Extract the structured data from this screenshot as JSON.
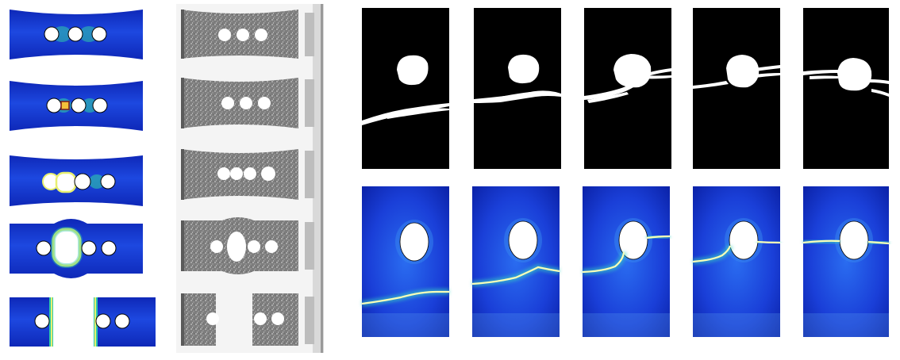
{
  "figure": {
    "panels": {
      "left_column_count": 5,
      "right_grid_rows": 2,
      "right_grid_cols": 5
    },
    "colors": {
      "simulation_base": "#1a3fd8",
      "simulation_dark": "#0a1fb0",
      "crack_highlight": "#f7ffb8",
      "crack_glow": "#39d2c0",
      "photo_gray": "#8a8a8a",
      "binary_black": "#000000",
      "binary_white": "#ffffff"
    }
  }
}
